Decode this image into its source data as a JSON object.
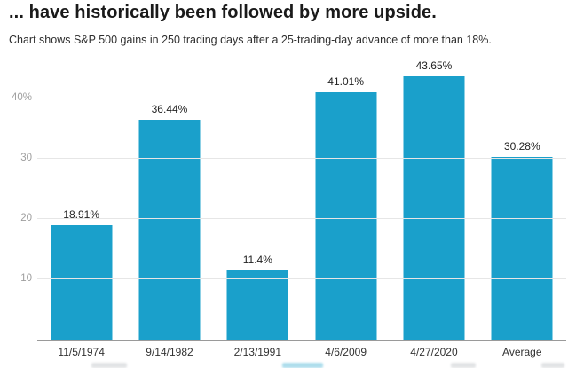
{
  "chart_data": {
    "type": "bar",
    "title": "... have historically been followed by more upside.",
    "subtitle": "Chart shows S&P 500 gains in 250 trading days after a 25-trading-day advance of more than 18%.",
    "categories": [
      "11/5/1974",
      "9/14/1982",
      "2/13/1991",
      "4/6/2009",
      "4/27/2020",
      "Average"
    ],
    "values": [
      18.91,
      36.44,
      11.4,
      41.01,
      43.65,
      30.28
    ],
    "value_labels": [
      "18.91%",
      "36.44%",
      "11.4%",
      "41.01%",
      "43.65%",
      "30.28%"
    ],
    "yticks": [
      {
        "value": 10,
        "label": "10"
      },
      {
        "value": 20,
        "label": "20"
      },
      {
        "value": 30,
        "label": "30"
      },
      {
        "value": 40,
        "label": "40%"
      }
    ],
    "ylim": [
      0,
      46
    ],
    "xlabel": "",
    "ylabel": "",
    "grid": true,
    "legend": false,
    "bar_color": "#1aa0cb"
  },
  "colors": {
    "background": "#ffffff",
    "bar": "#1aa0cb",
    "gridline": "#e6e6e6",
    "axis_line": "#9a9a9a",
    "ytick_text": "#9e9e9e",
    "xtick_text": "#333333",
    "value_label_text": "#222222",
    "title_text": "#1a1a1a",
    "subtitle_text": "#2e2e2e"
  }
}
